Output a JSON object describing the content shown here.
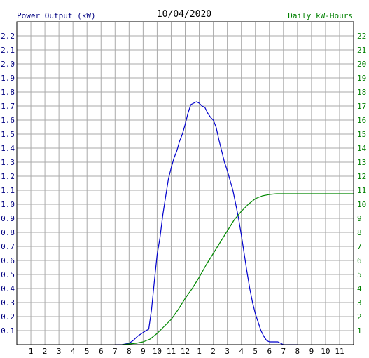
{
  "chart_data": {
    "type": "line",
    "title": "10/04/2020",
    "ylabel_left": "Power Output (kW)",
    "ylabel_right": "Daily kW-Hours",
    "x_tick_labels": [
      "1",
      "2",
      "3",
      "4",
      "5",
      "6",
      "7",
      "8",
      "9",
      "10",
      "11",
      "12",
      "1",
      "2",
      "3",
      "4",
      "5",
      "6",
      "7",
      "8",
      "9",
      "10",
      "11"
    ],
    "xlim_hours": [
      0,
      24
    ],
    "y_left_ticks": [
      "0.1",
      "0.2",
      "0.3",
      "0.4",
      "0.5",
      "0.6",
      "0.7",
      "0.8",
      "0.9",
      "1.0",
      "1.1",
      "1.2",
      "1.3",
      "1.4",
      "1.5",
      "1.6",
      "1.7",
      "1.8",
      "1.9",
      "2.0",
      "2.1",
      "2.2"
    ],
    "ylim_left": [
      0,
      2.3
    ],
    "y_right_ticks": [
      "1",
      "2",
      "3",
      "4",
      "5",
      "6",
      "7",
      "8",
      "9",
      "10",
      "11",
      "12",
      "13",
      "14",
      "15",
      "16",
      "17",
      "18",
      "19",
      "20",
      "21",
      "22"
    ],
    "ylim_right": [
      0,
      23
    ],
    "grid": true,
    "colors": {
      "power": "#0000cc",
      "energy": "#008800",
      "left_axis_text": "#000080",
      "right_axis_text": "#008000",
      "grid": "#aaaaaa"
    },
    "series": [
      {
        "axis": "left",
        "x": [
          7.0,
          7.5,
          8.0,
          8.3,
          8.6,
          8.9,
          9.2,
          9.4,
          9.6,
          9.8,
          10.0,
          10.2,
          10.4,
          10.6,
          10.8,
          11.0,
          11.2,
          11.4,
          11.6,
          11.8,
          12.0,
          12.2,
          12.4,
          12.6,
          12.8,
          13.0,
          13.2,
          13.4,
          13.6,
          13.8,
          14.0,
          14.2,
          14.4,
          14.6,
          14.8,
          15.0,
          15.2,
          15.4,
          15.6,
          15.8,
          16.0,
          16.2,
          16.4,
          16.6,
          16.8,
          17.0,
          17.2,
          17.4,
          17.6,
          17.8,
          18.0,
          18.2,
          18.4,
          18.6,
          18.8,
          19.0,
          19.2,
          19.5,
          20.0
        ],
        "y": [
          0.0,
          0.0,
          0.01,
          0.03,
          0.06,
          0.08,
          0.1,
          0.11,
          0.25,
          0.45,
          0.64,
          0.76,
          0.92,
          1.05,
          1.18,
          1.26,
          1.33,
          1.38,
          1.45,
          1.5,
          1.57,
          1.65,
          1.71,
          1.72,
          1.73,
          1.72,
          1.7,
          1.69,
          1.65,
          1.62,
          1.6,
          1.55,
          1.46,
          1.38,
          1.3,
          1.24,
          1.17,
          1.1,
          1.0,
          0.9,
          0.78,
          0.65,
          0.52,
          0.4,
          0.3,
          0.22,
          0.16,
          0.1,
          0.06,
          0.03,
          0.02,
          0.02,
          0.02,
          0.02,
          0.01,
          0.0,
          0.0,
          0.0,
          0.0
        ]
      },
      {
        "axis": "right",
        "x": [
          7.5,
          8.0,
          8.5,
          9.0,
          9.5,
          10.0,
          10.5,
          11.0,
          11.5,
          12.0,
          12.5,
          13.0,
          13.5,
          14.0,
          14.5,
          15.0,
          15.5,
          16.0,
          16.5,
          17.0,
          17.5,
          18.0,
          18.5,
          19.0,
          20.0,
          21.0,
          22.0,
          23.0,
          24.0
        ],
        "y": [
          0.0,
          0.05,
          0.1,
          0.2,
          0.4,
          0.8,
          1.3,
          1.8,
          2.5,
          3.3,
          4.0,
          4.8,
          5.7,
          6.5,
          7.3,
          8.1,
          8.9,
          9.5,
          10.0,
          10.4,
          10.6,
          10.7,
          10.75,
          10.75,
          10.75,
          10.75,
          10.75,
          10.75,
          10.75
        ]
      }
    ]
  }
}
